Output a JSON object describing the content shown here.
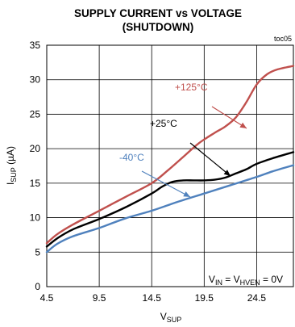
{
  "chart_data": {
    "type": "line",
    "title_line1": "SUPPLY CURRENT vs VOLTAGE",
    "title_line2": "(SHUTDOWN)",
    "figure_code": "toc05",
    "xlabel": {
      "main": "V",
      "sub": "SUP"
    },
    "ylabel": {
      "main": "I",
      "sub": "SUP",
      "unit": " (µA)"
    },
    "xlim": [
      4.5,
      28.0
    ],
    "ylim": [
      0,
      35
    ],
    "xticks": [
      4.5,
      9.5,
      14.5,
      19.5,
      24.5
    ],
    "xtick_labels": [
      "4.5",
      "9.5",
      "14.5",
      "19.5",
      "24.5"
    ],
    "yticks": [
      0,
      5,
      10,
      15,
      20,
      25,
      30,
      35
    ],
    "ytick_labels": [
      "0",
      "5",
      "10",
      "15",
      "20",
      "25",
      "30",
      "35"
    ],
    "grid": true,
    "condition": {
      "p1": "V",
      "s1": "IN",
      "p2": " = V",
      "s2": "HVEN",
      "p3": " = 0V"
    },
    "series": [
      {
        "name": "+125°C",
        "color": "#c0504d",
        "x": [
          4.5,
          5.5,
          7.0,
          9.5,
          12.0,
          14.5,
          16.0,
          17.5,
          19.0,
          20.5,
          21.5,
          22.5,
          23.5,
          24.5,
          25.5,
          26.5,
          28.0
        ],
        "y": [
          6.3,
          7.6,
          9.0,
          11.0,
          13.0,
          15.0,
          16.8,
          18.8,
          20.8,
          22.3,
          23.2,
          24.5,
          26.7,
          29.3,
          30.8,
          31.5,
          32.0
        ]
      },
      {
        "name": "+25°C",
        "color": "#000000",
        "x": [
          4.5,
          5.5,
          7.0,
          9.5,
          12.0,
          14.5,
          15.5,
          16.5,
          17.5,
          18.5,
          19.5,
          20.5,
          21.5,
          22.5,
          23.5,
          24.5,
          26.0,
          28.0
        ],
        "y": [
          5.8,
          7.0,
          8.3,
          9.8,
          11.5,
          13.5,
          14.5,
          15.2,
          15.4,
          15.4,
          15.4,
          15.5,
          15.8,
          16.4,
          17.0,
          17.8,
          18.6,
          19.5
        ]
      },
      {
        "name": "-40°C",
        "color": "#4f81bd",
        "x": [
          4.5,
          5.5,
          7.0,
          9.5,
          12.0,
          14.5,
          17.0,
          19.5,
          22.0,
          24.5,
          26.0,
          28.0
        ],
        "y": [
          5.0,
          6.2,
          7.3,
          8.5,
          9.9,
          11.0,
          12.3,
          13.5,
          14.7,
          15.9,
          16.7,
          17.6
        ]
      }
    ],
    "annotations": [
      {
        "series": 0,
        "text": "+125°C",
        "color": "#c0504d"
      },
      {
        "series": 1,
        "text": "+25°C",
        "color": "#000000"
      },
      {
        "series": 2,
        "text": "-40°C",
        "color": "#4f81bd"
      }
    ]
  }
}
